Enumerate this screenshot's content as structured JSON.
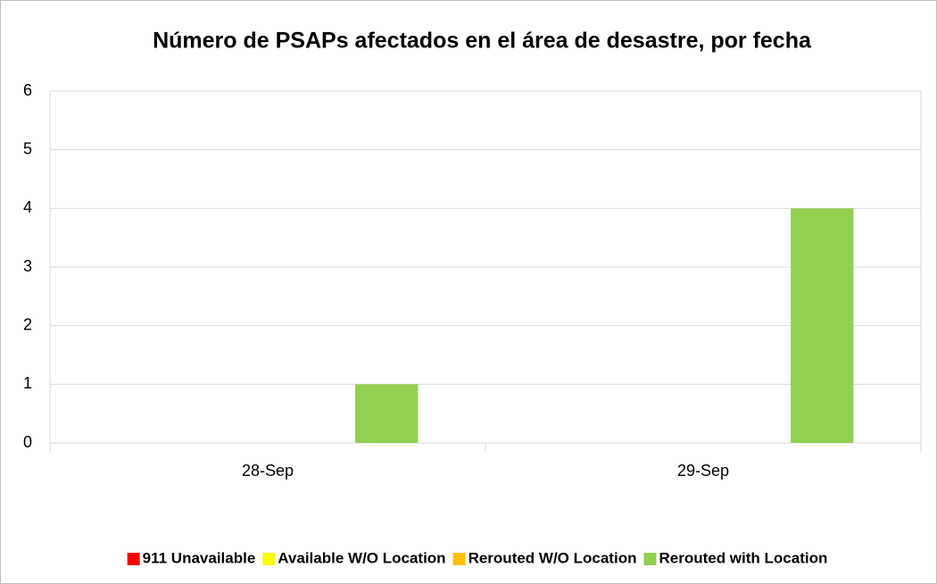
{
  "chart_data": {
    "type": "bar",
    "title": "Número de PSAPs afectados en el área de desastre, por fecha",
    "categories": [
      "28-Sep",
      "29-Sep"
    ],
    "series": [
      {
        "name": "911 Unavailable",
        "color": "#ff0000",
        "values": [
          0,
          0
        ]
      },
      {
        "name": "Available W/O Location",
        "color": "#ffff00",
        "values": [
          0,
          0
        ]
      },
      {
        "name": "Rerouted W/O Location",
        "color": "#ffc000",
        "values": [
          0,
          0
        ]
      },
      {
        "name": "Rerouted with Location",
        "color": "#92d050",
        "values": [
          1,
          4
        ]
      }
    ],
    "ylim": [
      0,
      6
    ],
    "yticks": [
      0,
      1,
      2,
      3,
      4,
      5,
      6
    ],
    "grid": true,
    "legend": "bottom"
  }
}
